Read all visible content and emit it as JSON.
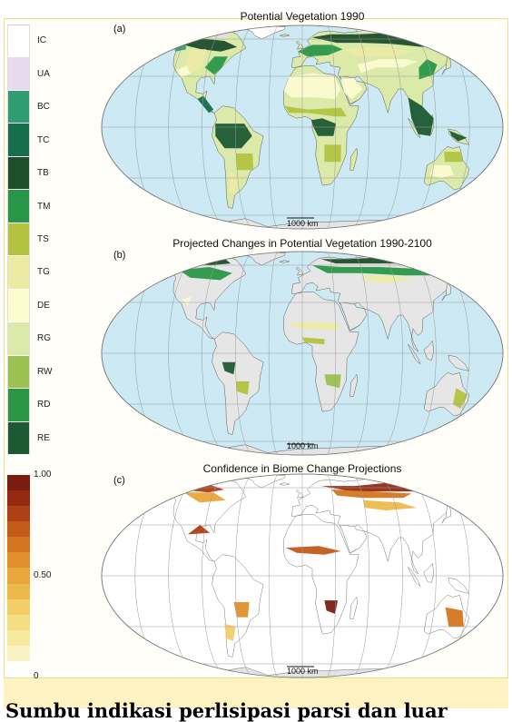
{
  "veg_legend": [
    {
      "code": "IC",
      "color": "#ffffff"
    },
    {
      "code": "UA",
      "color": "#e7d9ee"
    },
    {
      "code": "BC",
      "color": "#2e9e70"
    },
    {
      "code": "TC",
      "color": "#166e4c"
    },
    {
      "code": "TB",
      "color": "#1f4e2b"
    },
    {
      "code": "TM",
      "color": "#2a9748"
    },
    {
      "code": "TS",
      "color": "#b3c33f"
    },
    {
      "code": "TG",
      "color": "#eceba6"
    },
    {
      "code": "DE",
      "color": "#fbfbcf"
    },
    {
      "code": "RG",
      "color": "#dbeaa9"
    },
    {
      "code": "RW",
      "color": "#9bc150"
    },
    {
      "code": "RD",
      "color": "#2b9744"
    },
    {
      "code": "RE",
      "color": "#1d5a33"
    }
  ],
  "confidence_legend": {
    "max_label": "1.00",
    "mid_label": "0.50",
    "min_label": "0",
    "colors": [
      "#7a1d10",
      "#952a12",
      "#ad4016",
      "#c25a1a",
      "#d4761f",
      "#e08f2a",
      "#e9a63a",
      "#eeb94c",
      "#f2cd68",
      "#f4dd82",
      "#f6ea9f",
      "#f9f3c3",
      "#ffffff"
    ]
  },
  "maps": [
    {
      "tag": "(a)",
      "title": "Potential Vegetation 1990",
      "scale": "1000 km"
    },
    {
      "tag": "(b)",
      "title": "Projected Changes in Potential Vegetation 1990-2100",
      "scale": "1000 km"
    },
    {
      "tag": "(c)",
      "title": "Confidence in Biome Change Projections",
      "scale": "1000 km"
    }
  ],
  "colors": {
    "ocean": "#cde9f3",
    "antarctica": "#e4e4e4",
    "unchanged_land": "#e6e6e6",
    "grid": "#9a9a9a",
    "panel_border": "#f0dc8a"
  },
  "caption_fragment": "Sumbu indikasi perlisipasi parsi dan luar"
}
